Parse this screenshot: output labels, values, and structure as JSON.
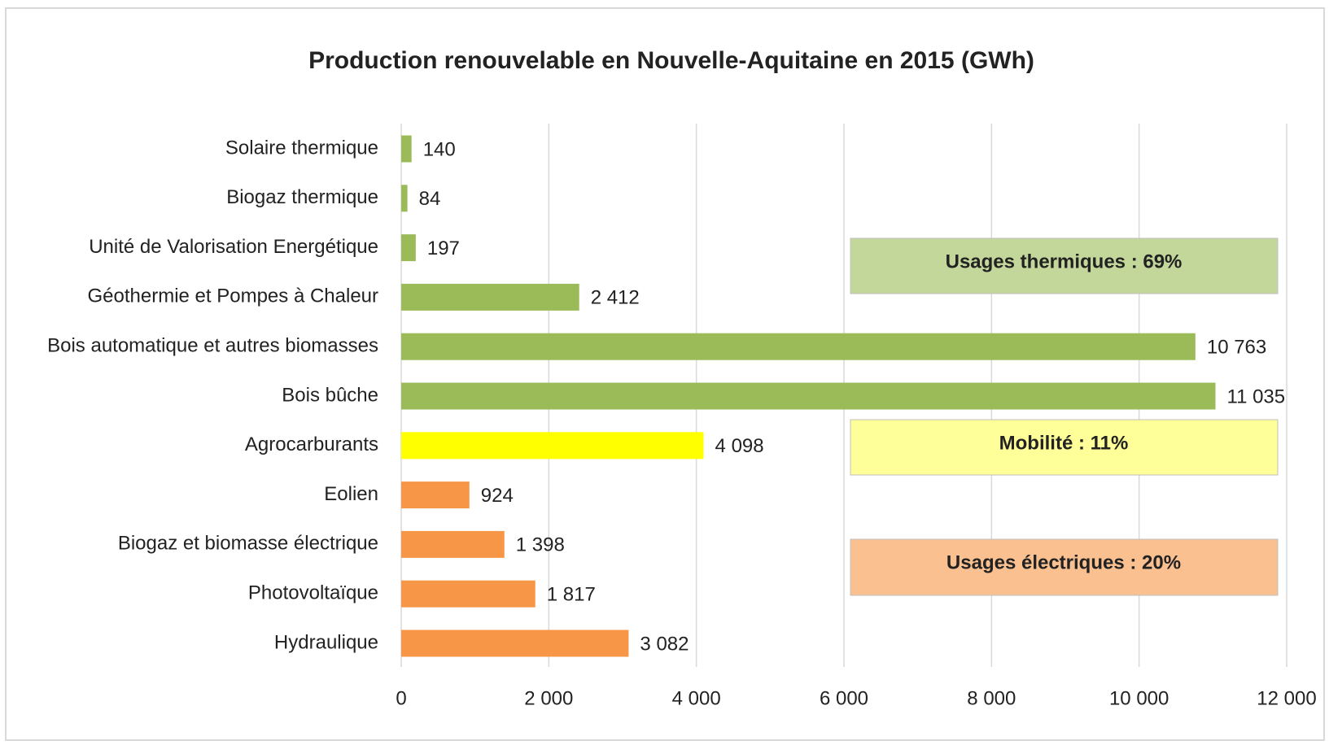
{
  "chart_data": {
    "type": "bar",
    "orientation": "horizontal",
    "title": "Production renouvelable en Nouvelle-Aquitaine en 2015 (GWh)",
    "categories": [
      "Solaire thermique",
      "Biogaz thermique",
      "Unité de Valorisation Energétique",
      "Géothermie et Pompes à Chaleur",
      "Bois automatique et autres biomasses",
      "Bois bûche",
      "Agrocarburants",
      "Eolien",
      "Biogaz et biomasse électrique",
      "Photovoltaïque",
      "Hydraulique"
    ],
    "values": [
      140,
      84,
      197,
      2412,
      10763,
      11035,
      4098,
      924,
      1398,
      1817,
      3082
    ],
    "value_labels": [
      "140",
      "84",
      "197",
      "2 412",
      "10 763",
      "11 035",
      "4 098",
      "924",
      "1 398",
      "1 817",
      "3 082"
    ],
    "colors": [
      "#9bbb59",
      "#9bbb59",
      "#9bbb59",
      "#9bbb59",
      "#9bbb59",
      "#9bbb59",
      "#ffff00",
      "#f79646",
      "#f79646",
      "#f79646",
      "#f79646"
    ],
    "xlim": [
      0,
      12000
    ],
    "xticks": [
      0,
      {
        "value": 2000,
        "label": "2 000"
      },
      {
        "value": 4000,
        "label": "4 000"
      },
      {
        "value": 6000,
        "label": "6 000"
      },
      {
        "value": 8000,
        "label": "8 000"
      },
      {
        "value": 10000,
        "label": "10 000"
      },
      {
        "value": 12000,
        "label": "12 000"
      }
    ],
    "grid": true,
    "annotations": [
      {
        "text": "Usages thermiques : 69%",
        "color": "#c4d79b"
      },
      {
        "text": "Mobilité : 11%",
        "color": "#ffff99"
      },
      {
        "text": "Usages électriques : 20%",
        "color": "#fac090"
      }
    ]
  }
}
